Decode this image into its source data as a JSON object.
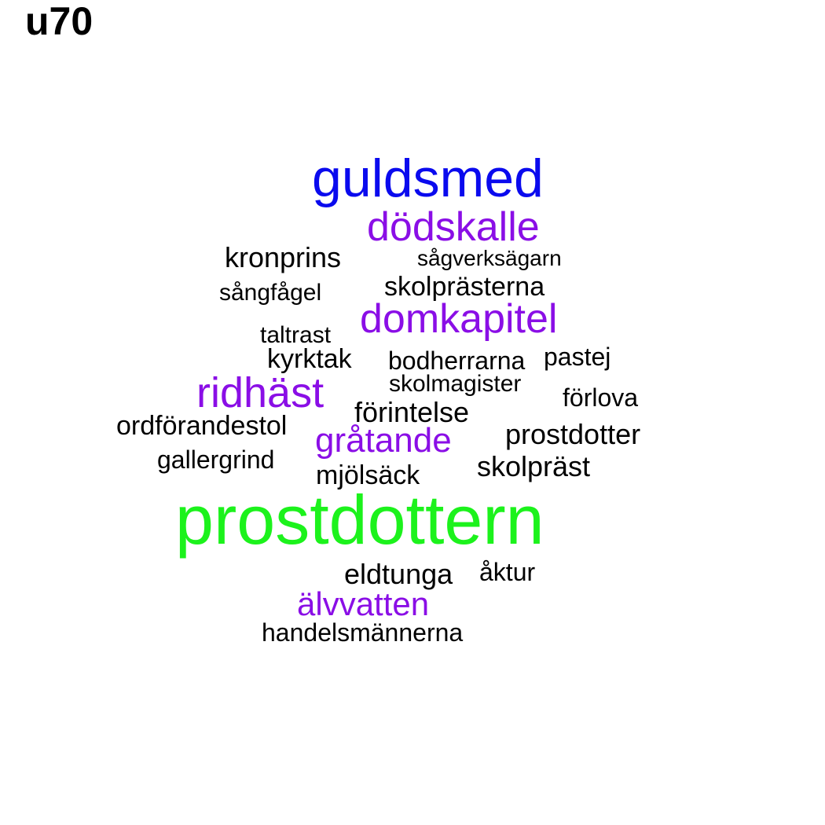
{
  "title": "u70",
  "colors": {
    "black": "#000000",
    "purple": "#8a0ee6",
    "blue": "#0a0aee",
    "green": "#1cf21c"
  },
  "words": [
    {
      "text": "guldsmed",
      "color": "blue"
    },
    {
      "text": "dödskalle",
      "color": "purple"
    },
    {
      "text": "kronprins",
      "color": "black"
    },
    {
      "text": "sågverksägarn",
      "color": "black"
    },
    {
      "text": "sångfågel",
      "color": "black"
    },
    {
      "text": "skolprästerna",
      "color": "black"
    },
    {
      "text": "domkapitel",
      "color": "purple"
    },
    {
      "text": "taltrast",
      "color": "black"
    },
    {
      "text": "kyrktak",
      "color": "black"
    },
    {
      "text": "bodherrarna",
      "color": "black"
    },
    {
      "text": "pastej",
      "color": "black"
    },
    {
      "text": "skolmagister",
      "color": "black"
    },
    {
      "text": "ridhäst",
      "color": "purple"
    },
    {
      "text": "förlova",
      "color": "black"
    },
    {
      "text": "förintelse",
      "color": "black"
    },
    {
      "text": "ordförandestol",
      "color": "black"
    },
    {
      "text": "gråtande",
      "color": "purple"
    },
    {
      "text": "prostdotter",
      "color": "black"
    },
    {
      "text": "gallergrind",
      "color": "black"
    },
    {
      "text": "skolpräst",
      "color": "black"
    },
    {
      "text": "mjölsäck",
      "color": "black"
    },
    {
      "text": "prostdottern",
      "color": "green"
    },
    {
      "text": "eldtunga",
      "color": "black"
    },
    {
      "text": "åktur",
      "color": "black"
    },
    {
      "text": "älvvatten",
      "color": "purple"
    },
    {
      "text": "handelsmännerna",
      "color": "black"
    }
  ]
}
